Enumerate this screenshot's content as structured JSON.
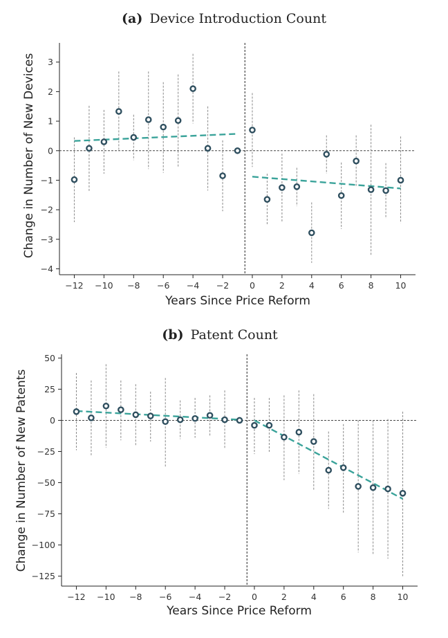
{
  "chart_data": [
    {
      "type": "scatter",
      "panel_tag": "(a)",
      "title": "Device Introduction Count",
      "xlabel": "Years Since Price Reform",
      "ylabel": "Change in Number of New Devices",
      "xlim": [
        -13,
        11
      ],
      "ylim": [
        -4.2,
        3.65
      ],
      "xticks": [
        -12,
        -10,
        -8,
        -6,
        -4,
        -2,
        0,
        2,
        4,
        6,
        8,
        10
      ],
      "yticks": [
        -4,
        -3,
        -2,
        -1,
        0,
        1,
        2,
        3
      ],
      "reform_line_x": -0.5,
      "zero_line_y": 0,
      "colors": {
        "point_fill": "#ffffff",
        "point_edge": "#2f4f5f",
        "trend": "#3aa39a",
        "error_bar": "#888888",
        "reference": "#444444"
      },
      "points": [
        {
          "x": -12,
          "y": -0.98,
          "lo": -2.42,
          "hi": 0.45
        },
        {
          "x": -11,
          "y": 0.08,
          "lo": -1.38,
          "hi": 1.52
        },
        {
          "x": -10,
          "y": 0.3,
          "lo": -0.78,
          "hi": 1.38
        },
        {
          "x": -9,
          "y": 1.33,
          "lo": 0.0,
          "hi": 2.68
        },
        {
          "x": -8,
          "y": 0.45,
          "lo": -0.32,
          "hi": 1.22
        },
        {
          "x": -7,
          "y": 1.05,
          "lo": -0.62,
          "hi": 2.68
        },
        {
          "x": -6,
          "y": 0.8,
          "lo": -0.75,
          "hi": 2.32
        },
        {
          "x": -5,
          "y": 1.02,
          "lo": -0.55,
          "hi": 2.58
        },
        {
          "x": -4,
          "y": 2.1,
          "lo": 0.92,
          "hi": 3.28
        },
        {
          "x": -3,
          "y": 0.08,
          "lo": -1.35,
          "hi": 1.5
        },
        {
          "x": -2,
          "y": -0.85,
          "lo": -2.05,
          "hi": 0.35
        },
        {
          "x": -1,
          "y": 0.0,
          "lo": 0.0,
          "hi": 0.0
        },
        {
          "x": 0,
          "y": 0.7,
          "lo": -0.55,
          "hi": 1.95
        },
        {
          "x": 1,
          "y": -1.65,
          "lo": -2.52,
          "hi": -0.78
        },
        {
          "x": 2,
          "y": -1.25,
          "lo": -2.42,
          "hi": -0.1
        },
        {
          "x": 3,
          "y": -1.22,
          "lo": -1.88,
          "hi": -0.58
        },
        {
          "x": 4,
          "y": -2.78,
          "lo": -3.8,
          "hi": -1.75
        },
        {
          "x": 5,
          "y": -0.12,
          "lo": -0.78,
          "hi": 0.52
        },
        {
          "x": 6,
          "y": -1.52,
          "lo": -2.65,
          "hi": -0.4
        },
        {
          "x": 7,
          "y": -0.35,
          "lo": -1.2,
          "hi": 0.52
        },
        {
          "x": 8,
          "y": -1.32,
          "lo": -3.55,
          "hi": 0.88
        },
        {
          "x": 9,
          "y": -1.35,
          "lo": -2.3,
          "hi": -0.42
        },
        {
          "x": 10,
          "y": -1.0,
          "lo": -2.45,
          "hi": 0.48
        }
      ],
      "trend_lines": [
        {
          "x": [
            -12,
            -1
          ],
          "y": [
            0.33,
            0.57
          ]
        },
        {
          "x": [
            0,
            10
          ],
          "y": [
            -0.88,
            -1.28
          ]
        }
      ]
    },
    {
      "type": "scatter",
      "panel_tag": "(b)",
      "title": "Patent Count",
      "xlabel": "Years Since Price Reform",
      "ylabel": "Change in Number of New Patents",
      "xlim": [
        -13,
        11
      ],
      "ylim": [
        -133,
        53
      ],
      "xticks": [
        -12,
        -10,
        -8,
        -6,
        -4,
        -2,
        0,
        2,
        4,
        6,
        8,
        10
      ],
      "yticks": [
        50,
        25,
        0,
        -25,
        -50,
        -75,
        -100,
        -125
      ],
      "reform_line_x": -0.5,
      "zero_line_y": 0,
      "colors": {
        "point_fill": "#ffffff",
        "point_edge": "#2f4f5f",
        "trend": "#3aa39a",
        "error_bar": "#888888",
        "reference": "#444444"
      },
      "points": [
        {
          "x": -12,
          "y": 7,
          "lo": -24,
          "hi": 38
        },
        {
          "x": -11,
          "y": 2,
          "lo": -29,
          "hi": 32
        },
        {
          "x": -10,
          "y": 11.5,
          "lo": -22,
          "hi": 45
        },
        {
          "x": -9,
          "y": 8.5,
          "lo": -16,
          "hi": 32
        },
        {
          "x": -8,
          "y": 4.5,
          "lo": -20,
          "hi": 29
        },
        {
          "x": -7,
          "y": 3.5,
          "lo": -17,
          "hi": 23
        },
        {
          "x": -6,
          "y": -1,
          "lo": -37,
          "hi": 34
        },
        {
          "x": -5,
          "y": 0.5,
          "lo": -15,
          "hi": 16
        },
        {
          "x": -4,
          "y": 1.5,
          "lo": -14,
          "hi": 18
        },
        {
          "x": -3,
          "y": 4,
          "lo": -13,
          "hi": 20
        },
        {
          "x": -2,
          "y": 0.5,
          "lo": -23,
          "hi": 24
        },
        {
          "x": -1,
          "y": 0,
          "lo": 0,
          "hi": 0
        },
        {
          "x": 0,
          "y": -4,
          "lo": -27,
          "hi": 18
        },
        {
          "x": 1,
          "y": -4,
          "lo": -26,
          "hi": 18
        },
        {
          "x": 2,
          "y": -13.5,
          "lo": -48,
          "hi": 20
        },
        {
          "x": 3,
          "y": -9.5,
          "lo": -43,
          "hi": 24
        },
        {
          "x": 4,
          "y": -17,
          "lo": -56,
          "hi": 21
        },
        {
          "x": 5,
          "y": -40,
          "lo": -71,
          "hi": -9
        },
        {
          "x": 6,
          "y": -38,
          "lo": -74,
          "hi": -3
        },
        {
          "x": 7,
          "y": -53,
          "lo": -106,
          "hi": 0
        },
        {
          "x": 8,
          "y": -54,
          "lo": -108,
          "hi": 0
        },
        {
          "x": 9,
          "y": -55,
          "lo": -111,
          "hi": 1
        },
        {
          "x": 10,
          "y": -58.5,
          "lo": -125,
          "hi": 7
        }
      ],
      "trend_lines": [
        {
          "x": [
            -12,
            -1
          ],
          "y": [
            7.5,
            0.5
          ]
        },
        {
          "x": [
            0,
            10
          ],
          "y": [
            0,
            -63
          ]
        }
      ]
    }
  ]
}
